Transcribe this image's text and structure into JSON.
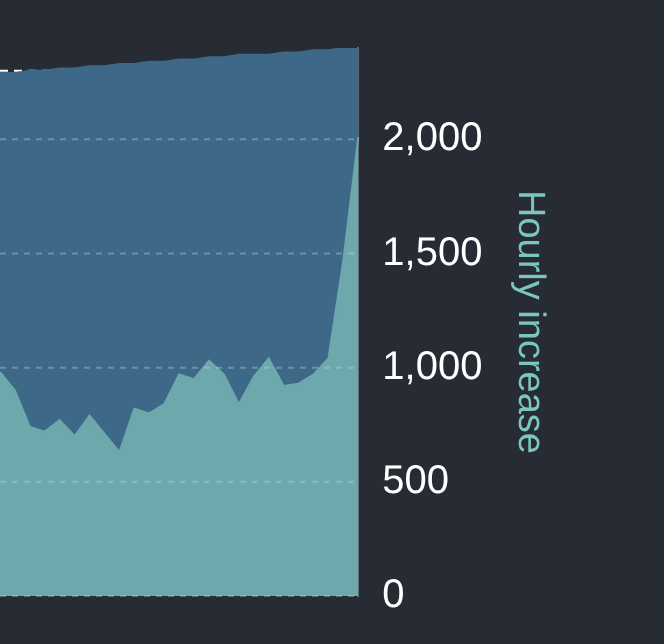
{
  "chart_data": {
    "type": "area",
    "ylabel": "Hourly increase",
    "categories": [
      null,
      null,
      null,
      null,
      null,
      null,
      null,
      null,
      null,
      null,
      null,
      null,
      null,
      null,
      null,
      null,
      null,
      null,
      null,
      null,
      null,
      null,
      null,
      null,
      null
    ],
    "series": [
      {
        "color": "#6da8ac",
        "values": [
          980,
          900,
          740,
          720,
          770,
          700,
          790,
          710,
          630,
          820,
          800,
          840,
          970,
          950,
          1030,
          970,
          840,
          960,
          1040,
          920,
          930,
          970,
          1040,
          1470,
          2010
        ]
      },
      {
        "color": "#3e6888",
        "values": [
          1310,
          1390,
          1560,
          1580,
          1540,
          1610,
          1530,
          1610,
          1700,
          1510,
          1540,
          1500,
          1380,
          1400,
          1330,
          1390,
          1530,
          1410,
          1330,
          1460,
          1450,
          1420,
          1350,
          930,
          390
        ]
      }
    ],
    "stacked": true,
    "ylim": [
      0,
      2400
    ],
    "yticks": [
      0,
      500,
      {
        "value": 1000,
        "label": "1,000"
      },
      {
        "value": 1500,
        "label": "1,500"
      },
      {
        "value": 2000,
        "label": "2,000"
      }
    ],
    "grid": "y",
    "legend": false,
    "tick_labels": "y",
    "ref_lines": [
      {
        "axis": "y",
        "value": 2300,
        "color": "#ffffff",
        "line_style": "dashed"
      }
    ]
  }
}
